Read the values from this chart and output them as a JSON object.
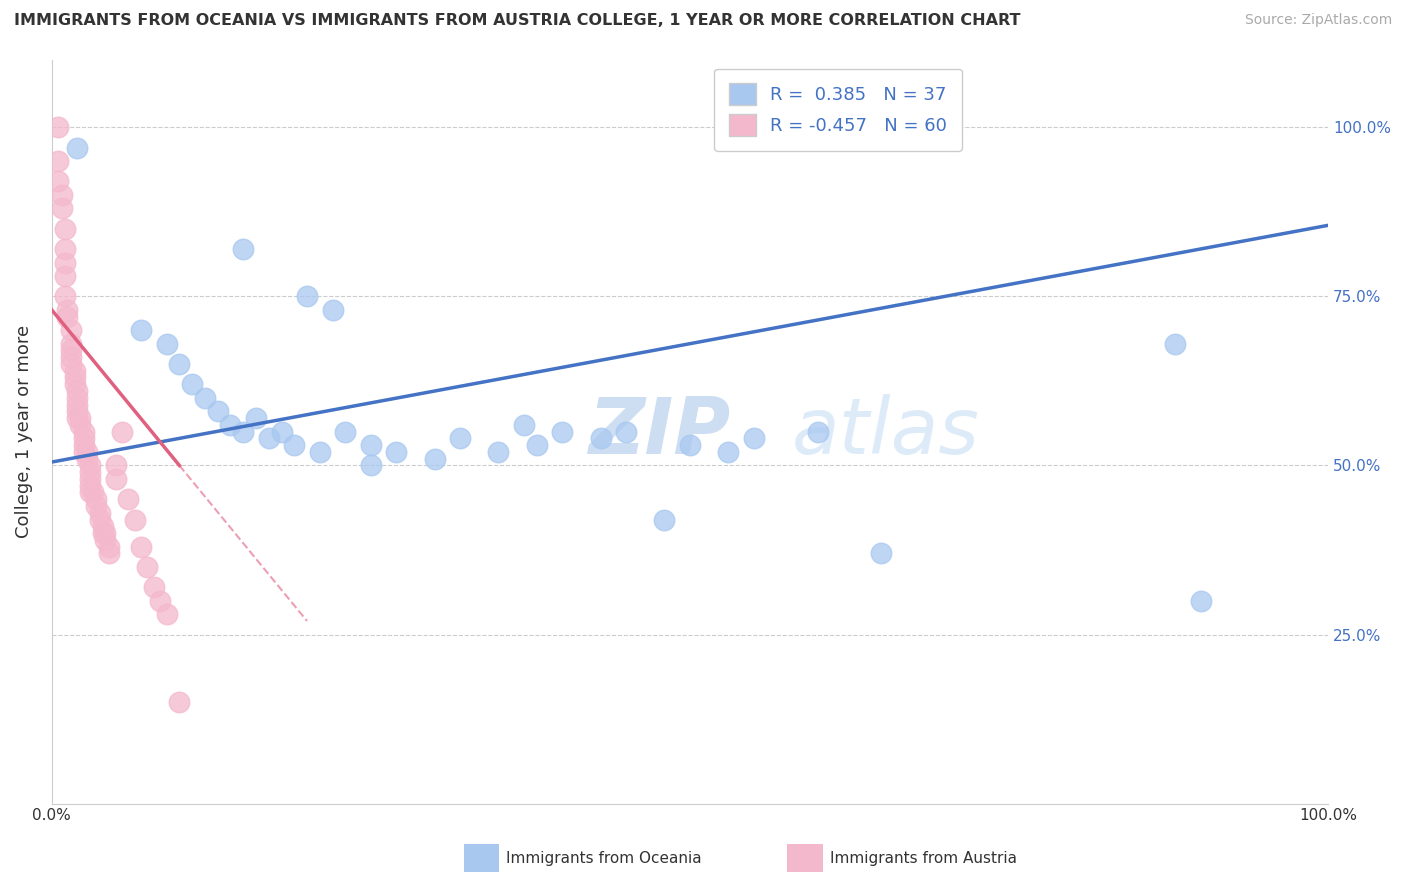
{
  "title": "IMMIGRANTS FROM OCEANIA VS IMMIGRANTS FROM AUSTRIA COLLEGE, 1 YEAR OR MORE CORRELATION CHART",
  "source": "Source: ZipAtlas.com",
  "ylabel": "College, 1 year or more",
  "series1_name": "Immigrants from Oceania",
  "series1_color": "#a8c8f0",
  "series1_line_color": "#4472C4",
  "series1_R": 0.385,
  "series1_N": 37,
  "series2_name": "Immigrants from Austria",
  "series2_color": "#f4b8cc",
  "series2_line_color": "#e06080",
  "series2_R": -0.457,
  "series2_N": 60,
  "oceania_x": [
    0.02,
    0.15,
    0.2,
    0.22,
    0.07,
    0.09,
    0.1,
    0.11,
    0.12,
    0.13,
    0.14,
    0.15,
    0.16,
    0.17,
    0.18,
    0.19,
    0.21,
    0.23,
    0.25,
    0.27,
    0.3,
    0.32,
    0.35,
    0.37,
    0.4,
    0.43,
    0.45,
    0.48,
    0.5,
    0.53,
    0.55,
    0.6,
    0.65,
    0.88,
    0.9,
    0.25,
    0.38
  ],
  "oceania_y": [
    0.97,
    0.82,
    0.75,
    0.73,
    0.7,
    0.68,
    0.65,
    0.62,
    0.6,
    0.58,
    0.56,
    0.55,
    0.57,
    0.54,
    0.55,
    0.53,
    0.52,
    0.55,
    0.53,
    0.52,
    0.51,
    0.54,
    0.52,
    0.56,
    0.55,
    0.54,
    0.55,
    0.42,
    0.53,
    0.52,
    0.54,
    0.55,
    0.37,
    0.68,
    0.3,
    0.5,
    0.53
  ],
  "austria_x": [
    0.005,
    0.005,
    0.005,
    0.008,
    0.008,
    0.01,
    0.01,
    0.01,
    0.01,
    0.01,
    0.012,
    0.012,
    0.015,
    0.015,
    0.015,
    0.015,
    0.015,
    0.018,
    0.018,
    0.018,
    0.02,
    0.02,
    0.02,
    0.02,
    0.02,
    0.022,
    0.022,
    0.025,
    0.025,
    0.025,
    0.025,
    0.028,
    0.028,
    0.03,
    0.03,
    0.03,
    0.03,
    0.03,
    0.032,
    0.035,
    0.035,
    0.038,
    0.038,
    0.04,
    0.04,
    0.042,
    0.042,
    0.045,
    0.045,
    0.05,
    0.05,
    0.055,
    0.06,
    0.065,
    0.07,
    0.075,
    0.08,
    0.085,
    0.09,
    0.1
  ],
  "austria_y": [
    1.0,
    0.95,
    0.92,
    0.9,
    0.88,
    0.85,
    0.82,
    0.8,
    0.78,
    0.75,
    0.73,
    0.72,
    0.7,
    0.68,
    0.67,
    0.66,
    0.65,
    0.64,
    0.63,
    0.62,
    0.61,
    0.6,
    0.59,
    0.58,
    0.57,
    0.57,
    0.56,
    0.55,
    0.54,
    0.53,
    0.52,
    0.52,
    0.51,
    0.5,
    0.49,
    0.48,
    0.47,
    0.46,
    0.46,
    0.45,
    0.44,
    0.43,
    0.42,
    0.41,
    0.4,
    0.4,
    0.39,
    0.38,
    0.37,
    0.5,
    0.48,
    0.55,
    0.45,
    0.42,
    0.38,
    0.35,
    0.32,
    0.3,
    0.28,
    0.15
  ],
  "xlim": [
    0,
    1.0
  ],
  "ylim": [
    0.0,
    1.1
  ],
  "yticks": [
    0.25,
    0.5,
    0.75,
    1.0
  ],
  "ytick_labels_right": [
    "25.0%",
    "50.0%",
    "75.0%",
    "100.0%"
  ],
  "xtick_labels": [
    "0.0%",
    "",
    "",
    "",
    "100.0%"
  ],
  "xticks": [
    0,
    0.25,
    0.5,
    0.75,
    1.0
  ]
}
